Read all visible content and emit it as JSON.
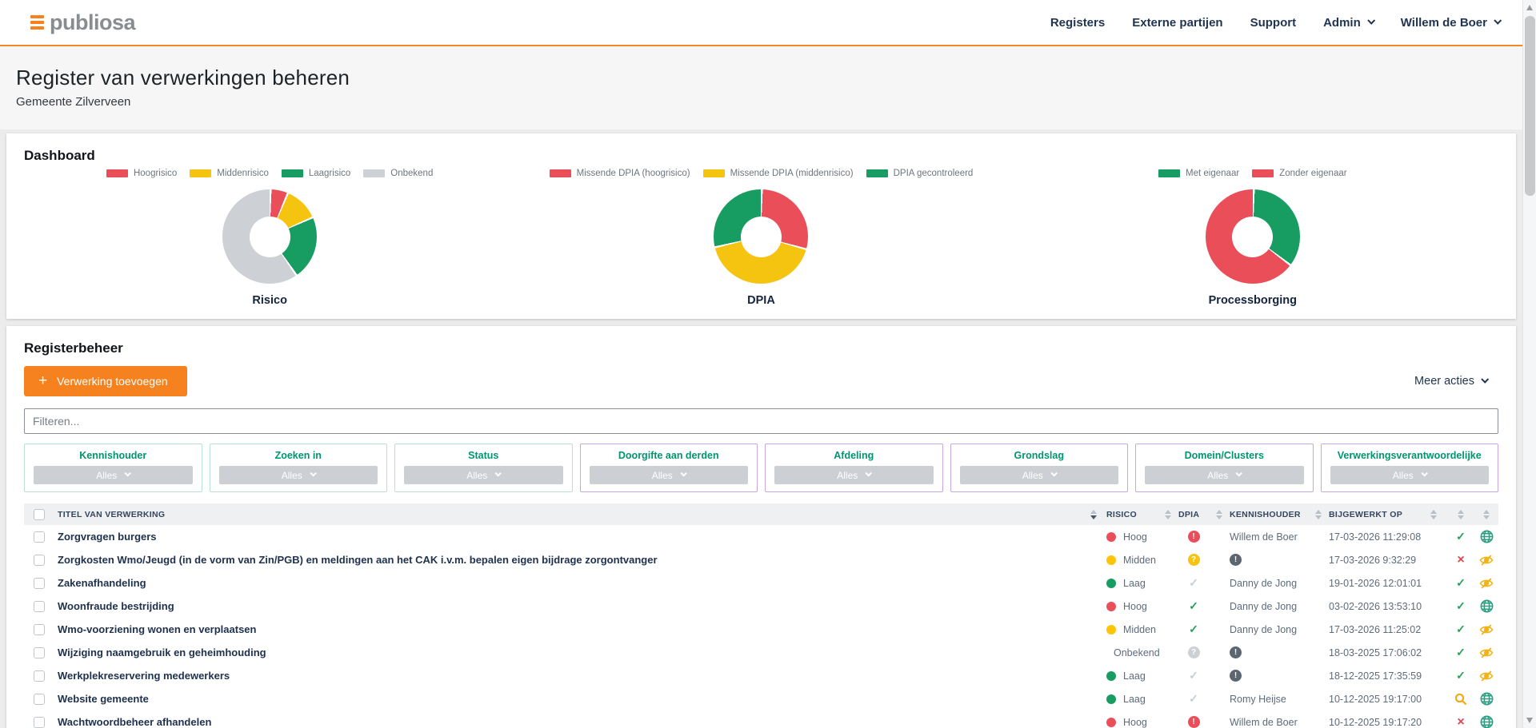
{
  "navbar": {
    "logo_text": "publiosa",
    "items": [
      {
        "label": "Registers",
        "caret": false
      },
      {
        "label": "Externe partijen",
        "caret": false
      },
      {
        "label": "Support",
        "caret": false
      },
      {
        "label": "Admin",
        "caret": true
      },
      {
        "label": "Willem de Boer",
        "caret": true
      }
    ]
  },
  "page_header": {
    "title": "Register van verwerkingen beheren",
    "subtitle": "Gemeente Zilverveen"
  },
  "dashboard": {
    "heading": "Dashboard"
  },
  "chart_data": [
    {
      "type": "pie",
      "title": "Risico",
      "labels": [
        "Hoogrisico",
        "Middenrisico",
        "Laagrisico",
        "Onbekend"
      ],
      "values": [
        6,
        12,
        22,
        60
      ],
      "colors": [
        "#EA4E59",
        "#F5C411",
        "#179D62",
        "#CDD1D5"
      ],
      "donut": true,
      "legend_position": "top"
    },
    {
      "type": "pie",
      "title": "DPIA",
      "labels": [
        "Missende DPIA (hoogrisico)",
        "Missende DPIA (middenrisico)",
        "DPIA gecontroleerd"
      ],
      "values": [
        29,
        42,
        29
      ],
      "colors": [
        "#EA4E59",
        "#F5C411",
        "#179D62"
      ],
      "donut": true,
      "legend_position": "top"
    },
    {
      "type": "pie",
      "title": "Processborging",
      "labels": [
        "Met eigenaar",
        "Zonder eigenaar"
      ],
      "values": [
        35,
        65
      ],
      "colors": [
        "#179D62",
        "#EA4E59"
      ],
      "donut": true,
      "legend_position": "top"
    }
  ],
  "register": {
    "heading": "Registerbeheer",
    "add_button_label": "Verwerking toevoegen",
    "more_actions_label": "Meer acties",
    "filter_placeholder": "Filteren...",
    "filters": [
      {
        "label": "Kennishouder",
        "value": "Alles",
        "accent": "teal"
      },
      {
        "label": "Zoeken in",
        "value": "Alles",
        "accent": "teal"
      },
      {
        "label": "Status",
        "value": "Alles",
        "accent": "teal"
      },
      {
        "label": "Doorgifte aan derden",
        "value": "Alles",
        "accent": "purple"
      },
      {
        "label": "Afdeling",
        "value": "Alles",
        "accent": "purple"
      },
      {
        "label": "Grondslag",
        "value": "Alles",
        "accent": "purple"
      },
      {
        "label": "Domein/Clusters",
        "value": "Alles",
        "accent": "purple"
      },
      {
        "label": "Verwerkingsverantwoordelijke",
        "value": "Alles",
        "accent": "purple"
      }
    ]
  },
  "table": {
    "columns": [
      "TITEL VAN VERWERKING",
      "RISICO",
      "DPIA",
      "KENNISHOUDER",
      "BIJGEWERKT OP"
    ],
    "rows": [
      {
        "title": "Zorgvragen burgers",
        "risico": "Hoog",
        "risico_color": "red",
        "dpia": "alert-red",
        "kennishouder": "Willem de Boer",
        "bijgewerkt": "17-03-2026 11:29:08",
        "status": "check",
        "publicatie": "globe"
      },
      {
        "title": "Zorgkosten Wmo/Jeugd (in de vorm van Zin/PGB) en meldingen aan het CAK i.v.m. bepalen eigen bijdrage zorgontvanger",
        "risico": "Midden",
        "risico_color": "yellow",
        "dpia": "question-yellow",
        "kennishouder": "",
        "bijgewerkt": "17-03-2026 9:32:29",
        "status": "cross",
        "publicatie": "eye-slash"
      },
      {
        "title": "Zakenafhandeling",
        "risico": "Laag",
        "risico_color": "green",
        "dpia": "check-gray",
        "kennishouder": "Danny de Jong",
        "bijgewerkt": "19-01-2026 12:01:01",
        "status": "check",
        "publicatie": "eye-slash"
      },
      {
        "title": "Woonfraude bestrijding",
        "risico": "Hoog",
        "risico_color": "red",
        "dpia": "check-green",
        "kennishouder": "Danny de Jong",
        "bijgewerkt": "03-02-2026 13:53:10",
        "status": "check",
        "publicatie": "globe"
      },
      {
        "title": "Wmo-voorziening wonen en verplaatsen",
        "risico": "Midden",
        "risico_color": "yellow",
        "dpia": "check-green",
        "kennishouder": "Danny de Jong",
        "bijgewerkt": "17-03-2026 11:25:02",
        "status": "check",
        "publicatie": "eye-slash"
      },
      {
        "title": "Wijziging naamgebruik en geheimhouding",
        "risico": "Onbekend",
        "risico_color": "gray",
        "dpia": "question-gray",
        "kennishouder": "",
        "bijgewerkt": "18-03-2025 17:06:02",
        "status": "check",
        "publicatie": "eye-slash"
      },
      {
        "title": "Werkplekreservering medewerkers",
        "risico": "Laag",
        "risico_color": "green",
        "dpia": "check-gray",
        "kennishouder": "",
        "bijgewerkt": "18-12-2025 17:35:59",
        "status": "check",
        "publicatie": "eye-slash"
      },
      {
        "title": "Website gemeente",
        "risico": "Laag",
        "risico_color": "green",
        "dpia": "check-gray",
        "kennishouder": "Romy Heijse",
        "bijgewerkt": "10-12-2025 19:17:00",
        "status": "search",
        "publicatie": "globe"
      },
      {
        "title": "Wachtwoordbeheer afhandelen",
        "risico": "Hoog",
        "risico_color": "red",
        "dpia": "alert-red",
        "kennishouder": "Willem de Boer",
        "bijgewerkt": "10-12-2025 19:17:20",
        "status": "cross",
        "publicatie": "globe"
      }
    ]
  },
  "colors": {
    "accent_orange": "#F5821F",
    "navy_text": "#1F3450",
    "red": "#EA4E59",
    "yellow": "#F5C411",
    "green": "#179D62",
    "gray": "#CDD1D5",
    "check_green": "#27A05B",
    "globe_teal": "#2C9E83",
    "eye_orange": "#F2B318",
    "search_orange": "#F5A70A",
    "info_gray": "#5B6670",
    "filter_label_teal": "#00956F"
  }
}
